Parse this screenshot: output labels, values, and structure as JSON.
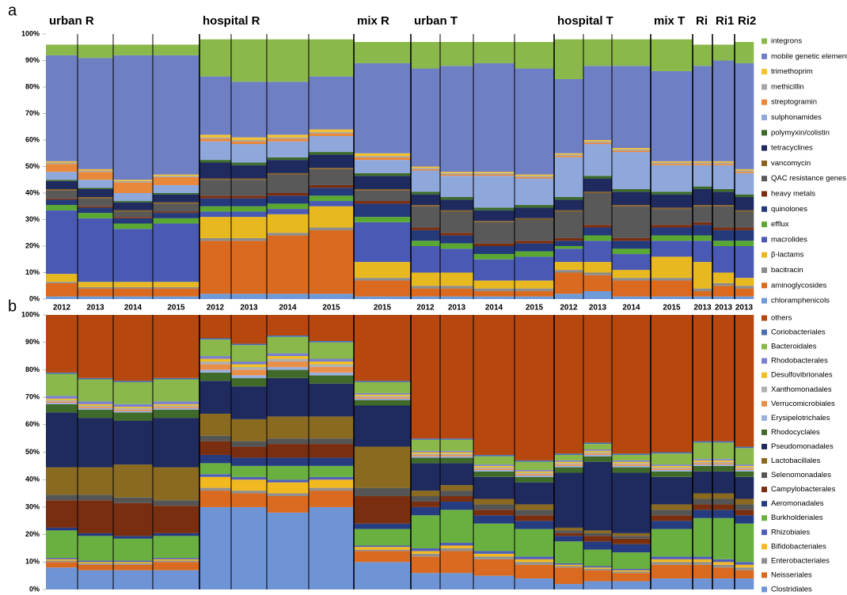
{
  "chart_data": [
    {
      "type": "bar",
      "stacked": true,
      "panel_label": "a",
      "groups": [
        {
          "name": "urban R",
          "years": [
            "2012",
            "2013",
            "2014",
            "2015"
          ]
        },
        {
          "name": "hospital R",
          "years": [
            "2012",
            "2013",
            "2014",
            "2015"
          ]
        },
        {
          "name": "mix R",
          "years": [
            "2015"
          ]
        },
        {
          "name": "urban T",
          "years": [
            "2012",
            "2013",
            "2014",
            "2015"
          ]
        },
        {
          "name": "hospital T",
          "years": [
            "2012",
            "2013",
            "2014"
          ]
        },
        {
          "name": "mix T",
          "years": [
            "2015"
          ]
        },
        {
          "name": "Ri",
          "years": [
            "2013"
          ]
        },
        {
          "name": "Ri1",
          "years": [
            "2013"
          ]
        },
        {
          "name": "Ri2",
          "years": [
            "2013"
          ]
        }
      ],
      "ylim": [
        0,
        100
      ],
      "yticks": [
        {
          "value": 0,
          "label": "0%"
        },
        {
          "value": 10,
          "label": "10%"
        },
        {
          "value": 20,
          "label": "20%"
        },
        {
          "value": 30,
          "label": "30%"
        },
        {
          "value": 40,
          "label": "40%"
        },
        {
          "value": 50,
          "label": "50%"
        },
        {
          "value": 60,
          "label": "60%"
        },
        {
          "value": 70,
          "label": "70%"
        },
        {
          "value": 80,
          "label": "80%"
        },
        {
          "value": 90,
          "label": "90%"
        },
        {
          "value": 100,
          "label": "100%"
        }
      ],
      "series": [
        {
          "name": "integrons",
          "color": "#8ab84a",
          "values": [
            4,
            5,
            4,
            4,
            14,
            16,
            16,
            14,
            8,
            10,
            9,
            8,
            10,
            15,
            10,
            10,
            12,
            8,
            6,
            8
          ]
        },
        {
          "name": "mobile genetic elements",
          "color": "#6f7fc4",
          "values": [
            40,
            42,
            47,
            45,
            22,
            21,
            20,
            20,
            34,
            37,
            40,
            41,
            40,
            28,
            28,
            31,
            34,
            36,
            38,
            40
          ]
        },
        {
          "name": "trimethoprim",
          "color": "#f2c230",
          "values": [
            0.5,
            0.5,
            0.5,
            0.5,
            1,
            1,
            1,
            1,
            1,
            0.5,
            0.5,
            0.5,
            0.5,
            0.5,
            0.5,
            0.5,
            0.5,
            0.5,
            0.5,
            0.5
          ]
        },
        {
          "name": "methicillin",
          "color": "#a6a6a6",
          "values": [
            0.5,
            0.5,
            0.5,
            0.5,
            0.5,
            0.5,
            0.5,
            0.5,
            0.5,
            0.5,
            0.5,
            0.5,
            0.5,
            0.5,
            0.5,
            0.5,
            0.5,
            0.5,
            0.5,
            0.5
          ]
        },
        {
          "name": "streptogramin",
          "color": "#e8883a",
          "values": [
            3,
            3,
            4,
            3,
            1,
            1,
            1,
            1,
            1,
            0.5,
            0.5,
            0.5,
            0.5,
            0.5,
            0.5,
            0.5,
            0.5,
            0.5,
            0.5,
            0.5
          ]
        },
        {
          "name": "sulphonamides",
          "color": "#8fa8dc",
          "values": [
            3,
            3,
            3,
            3,
            7,
            7,
            6,
            6,
            5,
            8,
            8,
            12,
            10,
            15,
            12,
            14,
            10,
            8,
            9,
            8
          ]
        },
        {
          "name": "polymyxin/colistin",
          "color": "#3c6a2a",
          "values": [
            0.5,
            0.5,
            0.5,
            0.5,
            1,
            1,
            1,
            1,
            1,
            1,
            1,
            1,
            1,
            1,
            1,
            1,
            1,
            1,
            1,
            1
          ]
        },
        {
          "name": "tetracyclines",
          "color": "#1f2a5e",
          "values": [
            3,
            3,
            3,
            3,
            6,
            5,
            5,
            5,
            5,
            4,
            4,
            4,
            4,
            4,
            5,
            5,
            5,
            6,
            5,
            5
          ]
        },
        {
          "name": "vancomycin",
          "color": "#8a6020",
          "values": [
            0.5,
            0.5,
            0.5,
            0.5,
            0.5,
            0.5,
            0.5,
            0.5,
            0.5,
            0.5,
            0.5,
            0.5,
            0.5,
            0.5,
            0.5,
            0.5,
            0.5,
            0.5,
            0.5,
            0.5
          ]
        },
        {
          "name": "QAC resistance genes",
          "color": "#595959",
          "values": [
            3,
            3,
            2,
            3,
            6,
            6,
            7,
            6,
            4,
            8,
            8,
            8,
            8,
            10,
            12,
            12,
            6,
            6,
            8,
            6
          ]
        },
        {
          "name": "heavy metals",
          "color": "#7a2e10",
          "values": [
            0.5,
            0.5,
            0.5,
            0.5,
            1,
            1,
            1,
            1,
            1,
            1,
            1,
            1,
            1,
            1,
            1,
            1,
            1,
            1,
            1,
            1
          ]
        },
        {
          "name": "quinolones",
          "color": "#243a7a",
          "values": [
            2,
            2,
            2,
            2,
            3,
            3,
            3,
            3,
            5,
            4,
            3,
            3,
            3,
            2,
            3,
            3,
            3,
            4,
            4,
            4
          ]
        },
        {
          "name": "efflux",
          "color": "#5aa832",
          "values": [
            2,
            2,
            2,
            2,
            2,
            2,
            2,
            2,
            2,
            2,
            2,
            2,
            2,
            1,
            2,
            2,
            2,
            2,
            2,
            2
          ]
        },
        {
          "name": "macrolides",
          "color": "#4a5ab4",
          "values": [
            24,
            24,
            20,
            22,
            2,
            2,
            2,
            2,
            15,
            10,
            9,
            8,
            9,
            5,
            8,
            6,
            6,
            8,
            10,
            12
          ]
        },
        {
          "name": "β-lactams",
          "color": "#e8b820",
          "values": [
            3,
            2,
            2,
            2,
            8,
            8,
            7,
            8,
            6,
            5,
            5,
            3,
            3,
            3,
            4,
            3,
            8,
            10,
            4,
            3
          ]
        },
        {
          "name": "bacitracin",
          "color": "#8c8c8c",
          "values": [
            0.5,
            0.5,
            0.5,
            0.5,
            1,
            1,
            1,
            1,
            1,
            1,
            1,
            1,
            1,
            1,
            1,
            1,
            1,
            1,
            1,
            1
          ]
        },
        {
          "name": "aminoglycosides",
          "color": "#d96a20",
          "values": [
            5,
            3,
            3,
            3,
            20,
            20,
            22,
            24,
            6,
            3,
            3,
            2,
            2,
            8,
            6,
            6,
            6,
            2,
            4,
            3
          ]
        },
        {
          "name": "chloramphenicols",
          "color": "#6f9ad8",
          "values": [
            1,
            1,
            1,
            1,
            2,
            2,
            2,
            2,
            1,
            1,
            1,
            1,
            1,
            2,
            3,
            1,
            1,
            1,
            1,
            1
          ]
        }
      ]
    },
    {
      "type": "bar",
      "stacked": true,
      "panel_label": "b",
      "ylim": [
        0,
        100
      ],
      "yticks": [
        {
          "value": 0,
          "label": "0%"
        },
        {
          "value": 10,
          "label": "10%"
        },
        {
          "value": 20,
          "label": "20%"
        },
        {
          "value": 30,
          "label": "30%"
        },
        {
          "value": 40,
          "label": "40%"
        },
        {
          "value": 50,
          "label": "50%"
        },
        {
          "value": 60,
          "label": "60%"
        },
        {
          "value": 70,
          "label": "70%"
        },
        {
          "value": 80,
          "label": "80%"
        },
        {
          "value": 90,
          "label": "90%"
        },
        {
          "value": 100,
          "label": "100%"
        }
      ],
      "series": [
        {
          "name": "others",
          "color": "#b5470f",
          "values": [
            21,
            23,
            24,
            23,
            8.5,
            10.5,
            7.5,
            9.5,
            24,
            45,
            45,
            51,
            53,
            50.5,
            46.5,
            50.5,
            50,
            46,
            46,
            48
          ]
        },
        {
          "name": "Coriobacteriales",
          "color": "#4a6fb0",
          "values": [
            0.5,
            0.5,
            0.5,
            0.5,
            0.5,
            0.5,
            0.5,
            0.5,
            0.5,
            0.5,
            0.5,
            0.5,
            0.5,
            0.5,
            0.5,
            0.5,
            0.5,
            0.5,
            0.5,
            0.5
          ]
        },
        {
          "name": "Bacteroidales",
          "color": "#8ab84a",
          "values": [
            8,
            8,
            8,
            8,
            6,
            6,
            6,
            6,
            4,
            4,
            4,
            3,
            3,
            2,
            2,
            2,
            4,
            6,
            6,
            6
          ]
        },
        {
          "name": "Rhodobacterales",
          "color": "#7a7fcf",
          "values": [
            1,
            1,
            1,
            1,
            1,
            1,
            1,
            1,
            0.5,
            0.5,
            0.5,
            0.5,
            0.5,
            0.5,
            0.5,
            0.5,
            0.5,
            0.5,
            0.5,
            0.5
          ]
        },
        {
          "name": "Desulfovibrionales",
          "color": "#f0c020",
          "values": [
            0.5,
            0.5,
            0.5,
            0.5,
            1,
            1,
            1,
            1,
            0.5,
            0.5,
            0.5,
            0.5,
            0.5,
            0.5,
            0.5,
            0.5,
            0.5,
            0.5,
            0.5,
            0.5
          ]
        },
        {
          "name": "Xanthomonadales",
          "color": "#b0b0b0",
          "values": [
            0.5,
            0.5,
            0.5,
            0.5,
            1,
            1,
            1,
            1,
            0.5,
            0.5,
            0.5,
            0.5,
            0.5,
            0.5,
            0.5,
            0.5,
            0.5,
            0.5,
            0.5,
            0.5
          ]
        },
        {
          "name": "Verrucomicrobiales",
          "color": "#e8904a",
          "values": [
            0.5,
            0.5,
            0.5,
            0.5,
            2,
            2,
            2,
            2,
            0.5,
            0.5,
            0.5,
            0.5,
            0.5,
            0.5,
            0.5,
            0.5,
            0.5,
            0.5,
            0.5,
            0.5
          ]
        },
        {
          "name": "Erysipelotrichales",
          "color": "#9ab0e0",
          "values": [
            0.5,
            0.5,
            0.5,
            0.5,
            1,
            1,
            1,
            1,
            0.5,
            0.5,
            0.5,
            0.5,
            0.5,
            0.5,
            0.5,
            0.5,
            0.5,
            0.5,
            0.5,
            0.5
          ]
        },
        {
          "name": "Rhodocyclales",
          "color": "#3f6a2a",
          "values": [
            3,
            3,
            3,
            3,
            3,
            3,
            3,
            3,
            2,
            2,
            2,
            2,
            2,
            2,
            2,
            2,
            2,
            2,
            2,
            2
          ]
        },
        {
          "name": "Pseudomonadales",
          "color": "#1f2a5e",
          "values": [
            20,
            18,
            16,
            18,
            12,
            12,
            14,
            12,
            15,
            10,
            8,
            8,
            8,
            20,
            25,
            22,
            10,
            8,
            8,
            8
          ]
        },
        {
          "name": "Lactobacillales",
          "color": "#8a6a20",
          "values": [
            10,
            10,
            12,
            12,
            8,
            8,
            8,
            8,
            15,
            2,
            2,
            2,
            2,
            1,
            1,
            1,
            2,
            2,
            2,
            2
          ]
        },
        {
          "name": "Selenomonadales",
          "color": "#555555",
          "values": [
            2,
            2,
            2,
            2,
            2,
            2,
            2,
            2,
            3,
            2,
            2,
            2,
            2,
            1,
            1,
            1,
            2,
            2,
            2,
            2
          ]
        },
        {
          "name": "Campylobacterales",
          "color": "#7a2e10",
          "values": [
            10,
            12,
            12,
            10,
            5,
            4,
            5,
            5,
            10,
            2,
            2,
            2,
            2,
            1,
            2,
            2,
            2,
            2,
            2,
            2
          ]
        },
        {
          "name": "Aeromonadales",
          "color": "#253c80",
          "values": [
            1,
            1,
            1,
            1,
            3,
            3,
            3,
            3,
            2,
            3,
            3,
            3,
            3,
            2,
            3,
            3,
            3,
            3,
            3,
            3
          ]
        },
        {
          "name": "Burkholderiales",
          "color": "#6ab040",
          "values": [
            10,
            9,
            8,
            8,
            4,
            4,
            5,
            4,
            6,
            12,
            12,
            10,
            10,
            8,
            6,
            6,
            10,
            14,
            15,
            14
          ]
        },
        {
          "name": "Rhizobiales",
          "color": "#5060b8",
          "values": [
            0.5,
            0.5,
            0.5,
            0.5,
            1,
            1,
            1,
            1,
            0.5,
            1,
            1,
            1,
            1,
            0.5,
            0.5,
            0.5,
            1,
            1,
            1,
            1
          ]
        },
        {
          "name": "Bifidobacteriales",
          "color": "#f2b820",
          "values": [
            0.5,
            0.5,
            0.5,
            0.5,
            4,
            4,
            4,
            3,
            1,
            1,
            1,
            1,
            1,
            0.5,
            0.5,
            0.5,
            1,
            1,
            1,
            1
          ]
        },
        {
          "name": "Enterobacteriales",
          "color": "#909090",
          "values": [
            0.5,
            0.5,
            0.5,
            0.5,
            1,
            1,
            1,
            1,
            0.5,
            1,
            1,
            1,
            1,
            0.5,
            0.5,
            0.5,
            1,
            1,
            1,
            1
          ]
        },
        {
          "name": "Neisseriales",
          "color": "#d96a20",
          "values": [
            2,
            2,
            2,
            3,
            6,
            5,
            6,
            6,
            4,
            6,
            8,
            6,
            5,
            6,
            4,
            3,
            5,
            5,
            4,
            3
          ]
        },
        {
          "name": "Clostridiales",
          "color": "#6f94d6",
          "values": [
            8,
            7,
            7,
            7,
            30,
            30,
            28,
            30,
            10,
            6,
            6,
            5,
            4,
            2,
            3,
            3,
            4,
            4,
            4,
            4
          ]
        }
      ]
    }
  ]
}
